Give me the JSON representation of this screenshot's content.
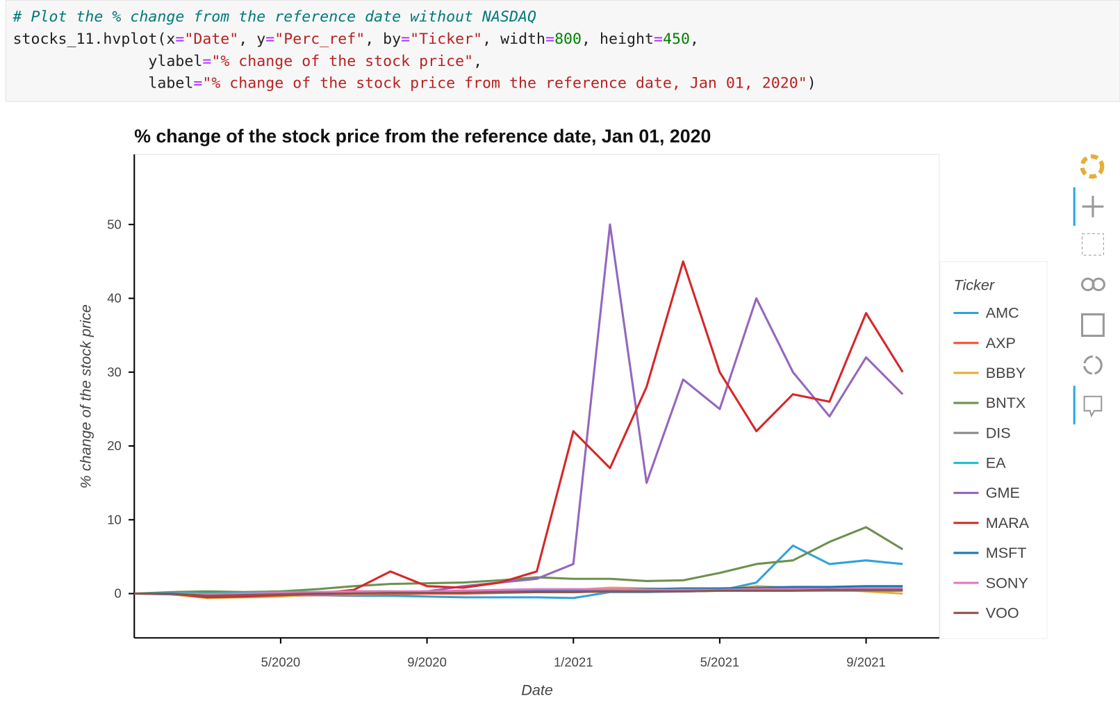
{
  "code_cell": {
    "lines": [
      "# Plot the % change from the reference date without NASDAQ",
      "stocks_11.hvplot(x=\"Date\", y=\"Perc_ref\", by=\"Ticker\", width=800, height=450,",
      "               ylabel=\"% change of the stock price\",",
      "               label=\"% change of the stock price from the reference date, Jan 01, 2020\")"
    ]
  },
  "chart_data": {
    "type": "line",
    "title": "% change of the stock price from the reference date, Jan 01, 2020",
    "xlabel": "Date",
    "ylabel": "% change of the stock price",
    "legend_title": "Ticker",
    "legend": "right",
    "x": [
      "1/2020",
      "2/2020",
      "3/2020",
      "4/2020",
      "5/2020",
      "6/2020",
      "7/2020",
      "8/2020",
      "9/2020",
      "10/2020",
      "11/2020",
      "12/2020",
      "1/2021",
      "2/2021",
      "3/2021",
      "4/2021",
      "5/2021",
      "6/2021",
      "7/2021",
      "8/2021",
      "9/2021",
      "10/2021"
    ],
    "xlim": [
      "1/2020",
      "11/2021"
    ],
    "xticks": [
      "5/2020",
      "9/2020",
      "1/2021",
      "5/2021",
      "9/2021"
    ],
    "ylim": [
      -6,
      59.5
    ],
    "yticks": [
      0,
      10,
      20,
      30,
      40,
      50
    ],
    "series": [
      {
        "name": "AMC",
        "color": "#30a2da",
        "values": [
          0,
          0,
          -0.3,
          -0.4,
          -0.3,
          -0.2,
          -0.3,
          -0.3,
          -0.4,
          -0.5,
          -0.5,
          -0.5,
          -0.6,
          0.2,
          0.2,
          0.3,
          0.4,
          1.5,
          6.5,
          4,
          4.5,
          4
        ]
      },
      {
        "name": "AXP",
        "color": "#fc4f30",
        "values": [
          0,
          0.1,
          -0.5,
          -0.4,
          -0.3,
          -0.2,
          -0.2,
          -0.1,
          0,
          0,
          0.1,
          0.2,
          0.2,
          0.3,
          0.3,
          0.4,
          0.4,
          0.5,
          0.5,
          0.5,
          0.5,
          0.6
        ]
      },
      {
        "name": "BBBY",
        "color": "#e5ae38",
        "values": [
          0,
          -0.1,
          -0.6,
          -0.5,
          -0.4,
          -0.1,
          -0.1,
          0,
          0.1,
          0.2,
          0.3,
          0.4,
          0.5,
          0.8,
          0.7,
          0.6,
          0.5,
          1,
          0.8,
          0.6,
          0.3,
          0
        ]
      },
      {
        "name": "BNTX",
        "color": "#6d904f",
        "values": [
          0,
          0.2,
          0.3,
          0.2,
          0.3,
          0.6,
          1,
          1.3,
          1.4,
          1.5,
          1.8,
          2.2,
          2,
          2,
          1.7,
          1.8,
          2.8,
          4,
          4.5,
          7,
          9,
          6
        ]
      },
      {
        "name": "DIS",
        "color": "#8b8b8b",
        "values": [
          0,
          0,
          -0.3,
          -0.3,
          -0.2,
          -0.1,
          0,
          0,
          0.1,
          0.2,
          0.3,
          0.5,
          0.5,
          0.6,
          0.6,
          0.6,
          0.6,
          0.5,
          0.5,
          0.5,
          0.4,
          0.4
        ]
      },
      {
        "name": "EA",
        "color": "#17becf",
        "values": [
          0,
          0.1,
          0,
          0.1,
          0.2,
          0.2,
          0.3,
          0.3,
          0.2,
          0.2,
          0.2,
          0.3,
          0.3,
          0.3,
          0.3,
          0.3,
          0.4,
          0.4,
          0.4,
          0.4,
          0.4,
          0.4
        ]
      },
      {
        "name": "GME",
        "color": "#9467bd",
        "values": [
          0,
          -0.1,
          -0.3,
          -0.2,
          -0.2,
          -0.1,
          0,
          0.1,
          0.3,
          1,
          1.5,
          2,
          4,
          50,
          15,
          29,
          25,
          40,
          30,
          24,
          32,
          27
        ]
      },
      {
        "name": "MARA",
        "color": "#d62728",
        "values": [
          0,
          0,
          -0.5,
          -0.4,
          -0.2,
          0,
          0.5,
          3,
          1,
          0.8,
          1.5,
          3,
          22,
          17,
          28,
          45,
          30,
          22,
          27,
          26,
          38,
          30
        ]
      },
      {
        "name": "MSFT",
        "color": "#1f77b4",
        "values": [
          0,
          0,
          -0.2,
          -0.1,
          0,
          0.1,
          0.2,
          0.2,
          0.3,
          0.3,
          0.3,
          0.4,
          0.5,
          0.5,
          0.6,
          0.7,
          0.7,
          0.8,
          0.9,
          0.9,
          1,
          1
        ]
      },
      {
        "name": "SONY",
        "color": "#e377c2",
        "values": [
          0,
          0,
          -0.1,
          0,
          0.1,
          0.2,
          0.3,
          0.3,
          0.3,
          0.4,
          0.5,
          0.6,
          0.6,
          0.6,
          0.5,
          0.5,
          0.5,
          0.6,
          0.6,
          0.6,
          0.7,
          0.7
        ]
      },
      {
        "name": "VOO",
        "color": "#8c564b",
        "values": [
          0,
          0,
          -0.3,
          -0.2,
          -0.1,
          0,
          0,
          0.1,
          0.1,
          0.1,
          0.2,
          0.2,
          0.2,
          0.3,
          0.3,
          0.3,
          0.4,
          0.4,
          0.4,
          0.5,
          0.5,
          0.5
        ]
      }
    ]
  }
}
